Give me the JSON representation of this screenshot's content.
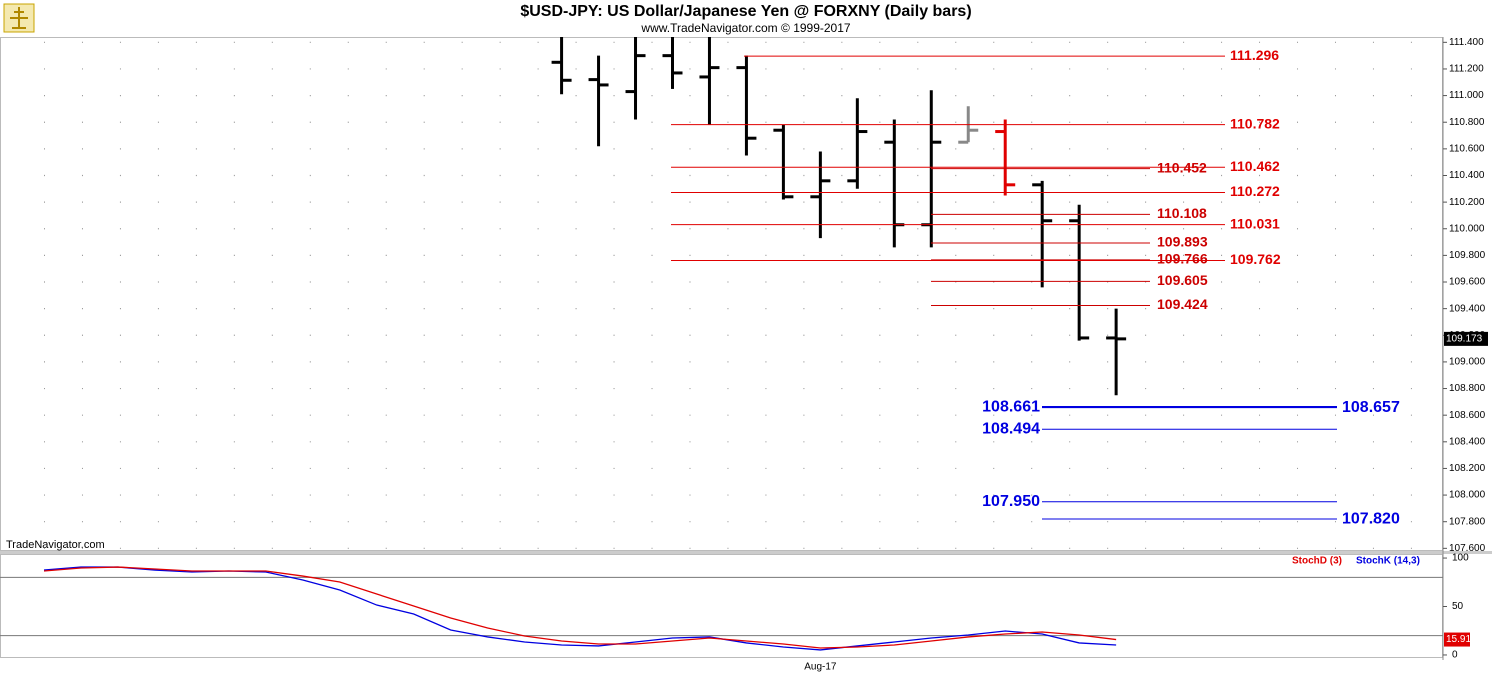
{
  "chart_data": [
    {
      "type": "ohlc",
      "title": "$USD-JPY:  US Dollar/Japanese Yen @ FORXNY  (Daily bars)",
      "subtitle": "www.TradeNavigator.com © 1999-2017",
      "watermark": "TradeNavigator.com",
      "open": [
        null,
        null,
        null,
        null,
        null,
        null,
        null,
        null,
        null,
        null,
        null,
        null,
        null,
        null,
        111.25,
        111.12,
        111.03,
        111.3,
        111.14,
        111.21,
        110.74,
        110.24,
        110.36,
        110.65,
        110.03,
        110.65,
        110.73,
        110.33,
        110.06,
        109.18
      ],
      "high": [
        null,
        null,
        null,
        null,
        null,
        null,
        null,
        null,
        null,
        null,
        null,
        null,
        null,
        null,
        111.5,
        111.3,
        111.5,
        111.5,
        111.5,
        111.3,
        110.78,
        110.58,
        110.98,
        110.82,
        111.04,
        110.92,
        110.82,
        110.36,
        110.18,
        109.4
      ],
      "low": [
        null,
        null,
        null,
        null,
        null,
        null,
        null,
        null,
        null,
        null,
        null,
        null,
        null,
        null,
        111.01,
        110.62,
        110.82,
        111.05,
        110.78,
        110.55,
        110.22,
        109.93,
        110.3,
        109.86,
        109.86,
        110.65,
        110.25,
        109.56,
        109.16,
        108.75
      ],
      "close": [
        null,
        null,
        null,
        null,
        null,
        null,
        null,
        null,
        null,
        null,
        null,
        null,
        null,
        null,
        111.115,
        111.08,
        111.3,
        111.17,
        111.21,
        110.68,
        110.24,
        110.36,
        110.73,
        110.03,
        110.65,
        110.74,
        110.33,
        110.06,
        109.18,
        109.173
      ],
      "bar_colors": [
        null,
        null,
        null,
        null,
        null,
        null,
        null,
        null,
        null,
        null,
        null,
        null,
        null,
        null,
        "#000000",
        "#000000",
        "#000000",
        "#000000",
        "#000000",
        "#000000",
        "#000000",
        "#000000",
        "#000000",
        "#000000",
        "#000000",
        "#888888",
        "#e00000",
        "#000000",
        "#000000",
        "#000000"
      ],
      "ylim": [
        107.58,
        111.44
      ],
      "yticks": [
        {
          "value": 111.4,
          "label": "111.400"
        },
        {
          "value": 111.2,
          "label": "111.200"
        },
        {
          "value": 111.0,
          "label": "111.000"
        },
        {
          "value": 110.8,
          "label": "110.800"
        },
        {
          "value": 110.6,
          "label": "110.600"
        },
        {
          "value": 110.4,
          "label": "110.400"
        },
        {
          "value": 110.2,
          "label": "110.200"
        },
        {
          "value": 110.0,
          "label": "110.000"
        },
        {
          "value": 109.8,
          "label": "109.800"
        },
        {
          "value": 109.6,
          "label": "109.600"
        },
        {
          "value": 109.4,
          "label": "109.400"
        },
        {
          "value": 109.2,
          "label": "109.200"
        },
        {
          "value": 109.0,
          "label": "109.000"
        },
        {
          "value": 108.8,
          "label": "108.800"
        },
        {
          "value": 108.6,
          "label": "108.600"
        },
        {
          "value": 108.4,
          "label": "108.400"
        },
        {
          "value": 108.2,
          "label": "108.200"
        },
        {
          "value": 108.0,
          "label": "108.000"
        },
        {
          "value": 107.8,
          "label": "107.800"
        },
        {
          "value": 107.6,
          "label": "107.600"
        }
      ],
      "grid": true,
      "last_price": 109.173,
      "levels": [
        {
          "value": 111.296,
          "label": "111.296",
          "color": "#e00000"
        },
        {
          "value": 110.782,
          "label": "110.782",
          "color": "#e00000"
        },
        {
          "value": 110.452,
          "label": "110.452",
          "color": "#cc0000"
        },
        {
          "value": 110.462,
          "label": "110.462",
          "color": "#e00000"
        },
        {
          "value": 110.272,
          "label": "110.272",
          "color": "#e00000"
        },
        {
          "value": 110.108,
          "label": "110.108",
          "color": "#cc0000"
        },
        {
          "value": 110.031,
          "label": "110.031",
          "color": "#e00000"
        },
        {
          "value": 109.893,
          "label": "109.893",
          "color": "#cc0000"
        },
        {
          "value": 109.766,
          "label": "109.766",
          "color": "#cc0000"
        },
        {
          "value": 109.762,
          "label": "109.762",
          "color": "#e00000"
        },
        {
          "value": 109.605,
          "label": "109.605",
          "color": "#cc0000"
        },
        {
          "value": 109.424,
          "label": "109.424",
          "color": "#cc0000"
        },
        {
          "value": 108.661,
          "label": "108.661",
          "color": "#0000e0"
        },
        {
          "value": 108.657,
          "label": "108.657",
          "color": "#0000e0"
        },
        {
          "value": 108.494,
          "label": "108.494",
          "color": "#0000e0"
        },
        {
          "value": 107.95,
          "label": "107.950",
          "color": "#0000e0"
        },
        {
          "value": 107.82,
          "label": "107.820",
          "color": "#0000e0"
        }
      ]
    },
    {
      "type": "line",
      "categories": [
        null,
        null,
        null,
        null,
        null,
        null,
        null,
        null,
        null,
        null,
        null,
        null,
        null,
        null,
        null,
        null,
        null,
        null,
        null,
        null,
        null,
        "Aug-17",
        null,
        null,
        null,
        null,
        null,
        null,
        null,
        null
      ],
      "series": [
        {
          "name": "StochK (14,3)",
          "color": "#0000e0",
          "values": [
            87.6,
            90.7,
            90.7,
            87.6,
            85.6,
            86.6,
            85.6,
            77.3,
            67.0,
            51.5,
            42.3,
            25.8,
            18.6,
            13.4,
            10.3,
            9.3,
            13.4,
            17.5,
            18.6,
            12.4,
            8.2,
            5.2,
            9.3,
            13.4,
            17.5,
            20.6,
            24.7,
            21.6,
            12.4,
            10.3
          ]
        },
        {
          "name": "StochD (3)",
          "color": "#e00000",
          "values": [
            86.6,
            89.7,
            90.7,
            88.7,
            86.6,
            86.6,
            86.6,
            81.4,
            75.3,
            62.9,
            50.5,
            38.1,
            27.8,
            19.6,
            14.4,
            11.3,
            11.3,
            14.4,
            17.5,
            14.4,
            11.3,
            7.2,
            8.2,
            10.3,
            14.4,
            18.6,
            21.6,
            23.7,
            20.6,
            15.91
          ]
        }
      ],
      "ylim": [
        -2,
        105
      ],
      "yticks": [
        0,
        50,
        100
      ],
      "reference_lines": [
        20,
        80
      ]
    }
  ]
}
